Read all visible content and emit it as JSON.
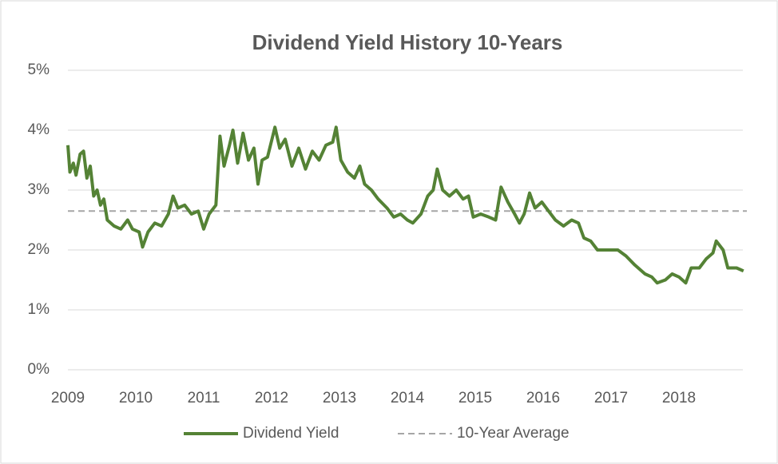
{
  "chart_data": {
    "type": "line",
    "title": "Dividend Yield History 10-Years",
    "xlim": [
      2009,
      2019
    ],
    "xticks": [
      2009,
      2010,
      2011,
      2012,
      2013,
      2014,
      2015,
      2016,
      2017,
      2018
    ],
    "ylim": [
      0,
      5
    ],
    "yticks": [
      {
        "value": 0,
        "label": "0%"
      },
      {
        "value": 1,
        "label": "1%"
      },
      {
        "value": 2,
        "label": "2%"
      },
      {
        "value": 3,
        "label": "3%"
      },
      {
        "value": 4,
        "label": "4%"
      },
      {
        "value": 5,
        "label": "5%"
      }
    ],
    "grid": true,
    "legend": "bottom",
    "series": [
      {
        "name": "Dividend Yield",
        "color": "#548235",
        "x": [
          2009.0,
          2009.03,
          2009.08,
          2009.12,
          2009.18,
          2009.23,
          2009.28,
          2009.33,
          2009.38,
          2009.43,
          2009.48,
          2009.53,
          2009.58,
          2009.68,
          2009.78,
          2009.88,
          2009.95,
          2010.05,
          2010.1,
          2010.18,
          2010.28,
          2010.38,
          2010.48,
          2010.55,
          2010.62,
          2010.72,
          2010.82,
          2010.92,
          2011.0,
          2011.08,
          2011.18,
          2011.24,
          2011.3,
          2011.38,
          2011.43,
          2011.5,
          2011.58,
          2011.66,
          2011.74,
          2011.8,
          2011.86,
          2011.94,
          2012.05,
          2012.12,
          2012.2,
          2012.3,
          2012.4,
          2012.5,
          2012.6,
          2012.7,
          2012.8,
          2012.9,
          2012.95,
          2013.02,
          2013.12,
          2013.22,
          2013.3,
          2013.37,
          2013.47,
          2013.57,
          2013.7,
          2013.8,
          2013.9,
          2014.0,
          2014.08,
          2014.2,
          2014.3,
          2014.38,
          2014.44,
          2014.52,
          2014.62,
          2014.72,
          2014.82,
          2014.9,
          2014.97,
          2015.08,
          2015.2,
          2015.3,
          2015.38,
          2015.48,
          2015.58,
          2015.65,
          2015.72,
          2015.8,
          2015.88,
          2015.98,
          2016.08,
          2016.18,
          2016.3,
          2016.42,
          2016.52,
          2016.6,
          2016.7,
          2016.8,
          2016.95,
          2017.1,
          2017.22,
          2017.35,
          2017.5,
          2017.6,
          2017.68,
          2017.8,
          2017.9,
          2018.0,
          2018.1,
          2018.18,
          2018.3,
          2018.4,
          2018.5,
          2018.55,
          2018.65,
          2018.72,
          2018.85,
          2018.95
        ],
        "values": [
          3.75,
          3.3,
          3.45,
          3.25,
          3.6,
          3.65,
          3.2,
          3.4,
          2.9,
          3.0,
          2.75,
          2.85,
          2.5,
          2.4,
          2.35,
          2.5,
          2.35,
          2.3,
          2.05,
          2.3,
          2.45,
          2.4,
          2.6,
          2.9,
          2.7,
          2.75,
          2.6,
          2.65,
          2.35,
          2.6,
          2.75,
          3.9,
          3.4,
          3.75,
          4.0,
          3.45,
          3.95,
          3.5,
          3.7,
          3.1,
          3.5,
          3.55,
          4.05,
          3.7,
          3.85,
          3.4,
          3.7,
          3.35,
          3.65,
          3.5,
          3.75,
          3.8,
          4.05,
          3.5,
          3.3,
          3.2,
          3.4,
          3.1,
          3.0,
          2.85,
          2.7,
          2.55,
          2.6,
          2.5,
          2.45,
          2.6,
          2.9,
          3.0,
          3.35,
          3.0,
          2.9,
          3.0,
          2.85,
          2.9,
          2.55,
          2.6,
          2.55,
          2.5,
          3.05,
          2.8,
          2.6,
          2.45,
          2.6,
          2.95,
          2.7,
          2.8,
          2.65,
          2.5,
          2.4,
          2.5,
          2.45,
          2.2,
          2.15,
          2.0,
          2.0,
          2.0,
          1.9,
          1.75,
          1.6,
          1.55,
          1.45,
          1.5,
          1.6,
          1.55,
          1.45,
          1.7,
          1.7,
          1.85,
          1.95,
          2.15,
          2.0,
          1.7,
          1.7,
          1.65
        ]
      },
      {
        "name": "10-Year Average",
        "color": "#a6a6a6",
        "dash": true,
        "x": [
          2009,
          2019
        ],
        "values": [
          2.65,
          2.65
        ]
      }
    ]
  }
}
